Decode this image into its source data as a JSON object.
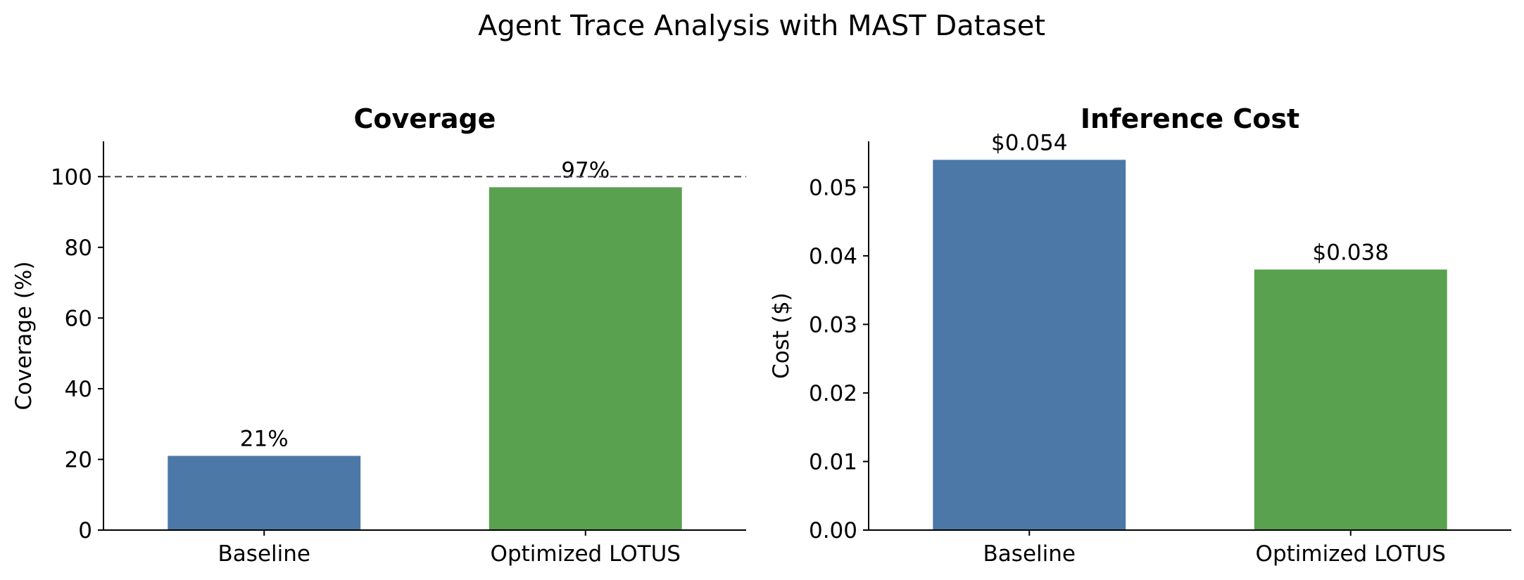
{
  "figure": {
    "title": "Agent Trace Analysis with MAST Dataset"
  },
  "chart_data": [
    {
      "type": "bar",
      "title": "Coverage",
      "xlabel": "",
      "ylabel": "Coverage (%)",
      "categories": [
        "Baseline",
        "Optimized LOTUS"
      ],
      "values": [
        21,
        97
      ],
      "value_labels": [
        "21%",
        "97%"
      ],
      "colors": [
        "#4c78a8",
        "#59a14f"
      ],
      "ylim": [
        0,
        110
      ],
      "yticks": [
        0,
        20,
        40,
        60,
        80,
        100
      ],
      "ytick_labels": [
        "0",
        "20",
        "40",
        "60",
        "80",
        "100"
      ],
      "reference_line": {
        "y": 100,
        "style": "dashed",
        "color": "#444444"
      },
      "grid": false
    },
    {
      "type": "bar",
      "title": "Inference Cost",
      "xlabel": "",
      "ylabel": "Cost ($)",
      "categories": [
        "Baseline",
        "Optimized LOTUS"
      ],
      "values": [
        0.054,
        0.038
      ],
      "value_labels": [
        "$0.054",
        "$0.038"
      ],
      "colors": [
        "#4c78a8",
        "#59a14f"
      ],
      "ylim": [
        0,
        0.0567
      ],
      "yticks": [
        0,
        0.01,
        0.02,
        0.03,
        0.04,
        0.05
      ],
      "ytick_labels": [
        "0.00",
        "0.01",
        "0.02",
        "0.03",
        "0.04",
        "0.05"
      ],
      "grid": false
    }
  ]
}
